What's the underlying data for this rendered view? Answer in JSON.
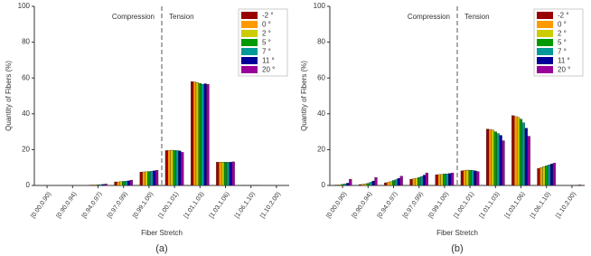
{
  "chart_data": [
    {
      "type": "bar",
      "panel_label": "(a)",
      "xlabel": "Fiber Stretch",
      "ylabel": "Quantity of Fibers (%)",
      "annotations": [
        "Compression",
        "Tension"
      ],
      "categories": [
        "[0.00,0.90)",
        "[0.90,0.94)",
        "[0.94,0.97)",
        "[0.97,0.99)",
        "[0.99,1.00)",
        "[1.00,1.01)",
        "[1.01,1.03)",
        "[1.03,1.06)",
        "[1.06,1.10)",
        "[1.10,2.00)"
      ],
      "series": [
        {
          "name": "-2 °",
          "color": "#990000",
          "values": [
            0,
            0,
            0.2,
            2,
            7.5,
            19.5,
            58,
            13,
            0.1,
            0
          ]
        },
        {
          "name": "0 °",
          "color": "#ff9900",
          "values": [
            0,
            0,
            0.3,
            2,
            7.6,
            19.6,
            57.8,
            13,
            0.1,
            0
          ]
        },
        {
          "name": "2 °",
          "color": "#cccc00",
          "values": [
            0,
            0,
            0.3,
            2.2,
            7.7,
            19.7,
            57.5,
            13,
            0.1,
            0
          ]
        },
        {
          "name": "5 °",
          "color": "#009900",
          "values": [
            0,
            0,
            0.4,
            2.3,
            7.8,
            19.6,
            57,
            13,
            0.1,
            0
          ]
        },
        {
          "name": "7 °",
          "color": "#009999",
          "values": [
            0,
            0,
            0.5,
            2.4,
            8,
            19.5,
            56.5,
            13,
            0.1,
            0
          ]
        },
        {
          "name": "11 °",
          "color": "#000099",
          "values": [
            0,
            0,
            0.6,
            2.6,
            8.2,
            19.3,
            56.8,
            13,
            0.1,
            0
          ]
        },
        {
          "name": "20 °",
          "color": "#990099",
          "values": [
            0,
            0,
            0.8,
            3,
            8.5,
            18.5,
            56.5,
            13.2,
            0.1,
            0
          ]
        }
      ],
      "ylim": [
        0,
        100
      ],
      "yticks": [
        0,
        20,
        40,
        60,
        80,
        100
      ],
      "legend": "upper right"
    },
    {
      "type": "bar",
      "panel_label": "(b)",
      "xlabel": "Fiber Stretch",
      "ylabel": "Quantity of Fibers (%)",
      "annotations": [
        "Compression",
        "Tension"
      ],
      "categories": [
        "[0.00,0.90)",
        "[0.90,0.94)",
        "[0.94,0.97)",
        "[0.97,0.99)",
        "[0.99,1.00)",
        "[1.00,1.01)",
        "[1.01,1.03)",
        "[1.03,1.06)",
        "[1.06,1.10)",
        "[1.10,2.00)"
      ],
      "series": [
        {
          "name": "-2 °",
          "color": "#990000",
          "values": [
            0.2,
            0.5,
            1.5,
            3.5,
            6,
            8.2,
            31.5,
            39,
            9.5,
            0
          ]
        },
        {
          "name": "0 °",
          "color": "#ff9900",
          "values": [
            0.3,
            0.7,
            1.8,
            3.8,
            6.1,
            8.4,
            31.3,
            38.5,
            10,
            0
          ]
        },
        {
          "name": "2 °",
          "color": "#cccc00",
          "values": [
            0.4,
            0.9,
            2.2,
            4,
            6.2,
            8.6,
            31,
            38,
            10.5,
            0
          ]
        },
        {
          "name": "5 °",
          "color": "#009900",
          "values": [
            0.6,
            1.2,
            2.8,
            4.5,
            6.4,
            8.5,
            30,
            37,
            11,
            0
          ]
        },
        {
          "name": "7 °",
          "color": "#009999",
          "values": [
            0.9,
            1.8,
            3.3,
            5,
            6.5,
            8.4,
            29,
            35,
            11.5,
            0
          ]
        },
        {
          "name": "11 °",
          "color": "#000099",
          "values": [
            1.3,
            2.5,
            4,
            5.8,
            6.7,
            8.2,
            28,
            32,
            12,
            0.1
          ]
        },
        {
          "name": "20 °",
          "color": "#990099",
          "values": [
            3.5,
            4.5,
            5.2,
            7,
            7,
            7.8,
            25,
            27.5,
            12.5,
            0.3
          ]
        }
      ],
      "ylim": [
        0,
        100
      ],
      "yticks": [
        0,
        20,
        40,
        60,
        80,
        100
      ],
      "legend": "upper right"
    }
  ]
}
